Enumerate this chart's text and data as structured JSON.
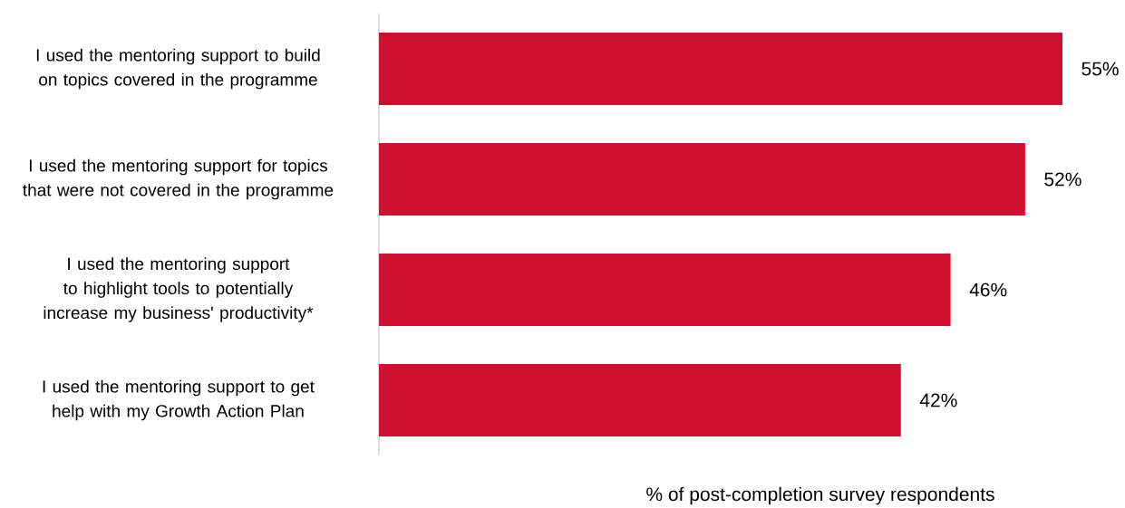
{
  "chart_data": {
    "type": "bar",
    "orientation": "horizontal",
    "categories": [
      "I used the mentoring support to build on topics covered in the programme",
      "I used the mentoring support for topics that were not covered in the programme",
      "I used the mentoring support to highlight tools to potentially increase my business' productivity*",
      "I used the mentoring support to get help with my Growth Action Plan"
    ],
    "values": [
      55,
      52,
      46,
      42
    ],
    "value_labels": [
      "55%",
      "52%",
      "46%",
      "42%"
    ],
    "color": "#cf1130",
    "xlabel": "% of post-completion survey respondents",
    "tick_labels": "y"
  }
}
